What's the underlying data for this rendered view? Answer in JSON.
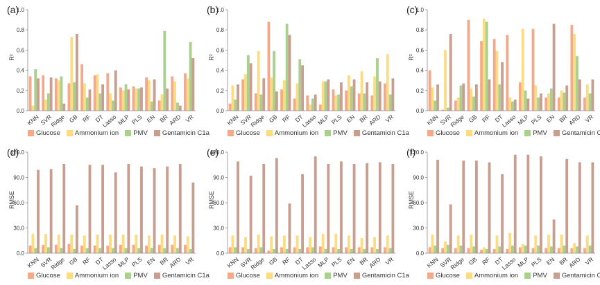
{
  "chart_data": {
    "colors": [
      "#f4a98b",
      "#fbdc82",
      "#a9d08e",
      "#c79e8f"
    ],
    "categories": [
      "KNN",
      "SVR",
      "Ridge",
      "GB",
      "RF",
      "DT",
      "Lasso",
      "MLP",
      "PLS",
      "EN",
      "BR",
      "ARD",
      "VR"
    ],
    "legend": [
      "Glucose",
      "Ammonium ion",
      "PMV",
      "Gentamicin C1a"
    ],
    "panels": [
      {
        "label": "(a)",
        "ylabel": "R²",
        "ylim": [
          0,
          1.0
        ],
        "ticks": [
          "0.0",
          "0.2",
          "0.4",
          "0.6",
          "0.8",
          "1.0"
        ],
        "type": "bar",
        "series": [
          {
            "name": "Glucose",
            "values": [
              0.34,
              0.35,
              0.32,
              0.27,
              0.46,
              0.35,
              0.37,
              0.23,
              0.24,
              0.33,
              0.1,
              0.34,
              0.37
            ]
          },
          {
            "name": "Ammonium ion",
            "values": [
              0.05,
              0.11,
              0.3,
              0.73,
              0.27,
              0.36,
              0.17,
              0.2,
              0.22,
              0.3,
              0.16,
              0.29,
              0.32
            ]
          },
          {
            "name": "PMV",
            "values": [
              0.41,
              0.17,
              0.34,
              0.28,
              0.13,
              0.17,
              0.1,
              0.26,
              0.22,
              0.09,
              0.79,
              0.08,
              0.68
            ]
          },
          {
            "name": "Gentamicin C1a",
            "values": [
              0.32,
              0.33,
              0.07,
              0.76,
              0.21,
              0.26,
              0.4,
              0.21,
              0.23,
              0.31,
              0.22,
              0.05,
              0.52
            ]
          }
        ]
      },
      {
        "label": "(b)",
        "ylabel": "R²",
        "ylim": [
          0,
          1.0
        ],
        "ticks": [
          "0.0",
          "0.2",
          "0.4",
          "0.6",
          "0.8",
          "1.0"
        ],
        "type": "bar",
        "series": [
          {
            "name": "Glucose",
            "values": [
              0.07,
              0.31,
              0.17,
              0.88,
              0.21,
              0.12,
              0.15,
              0.06,
              0.21,
              0.2,
              0.17,
              0.15,
              0.27
            ]
          },
          {
            "name": "Ammonium ion",
            "values": [
              0.25,
              0.36,
              0.59,
              0.33,
              0.3,
              0.27,
              0.06,
              0.29,
              0.15,
              0.35,
              0.39,
              0.34,
              0.56
            ]
          },
          {
            "name": "PMV",
            "values": [
              0.11,
              0.55,
              0.16,
              0.59,
              0.86,
              0.51,
              0.12,
              0.29,
              0.16,
              0.24,
              0.17,
              0.52,
              0.16
            ]
          },
          {
            "name": "Gentamicin C1a",
            "values": [
              0.26,
              0.47,
              0.32,
              0.19,
              0.75,
              0.45,
              0.16,
              0.31,
              0.28,
              0.31,
              0.28,
              0.29,
              0.32
            ]
          }
        ]
      },
      {
        "label": "(c)",
        "ylabel": "R²",
        "ylim": [
          0,
          1.0
        ],
        "ticks": [
          "0.0",
          "0.2",
          "0.4",
          "0.6",
          "0.8",
          "1.0"
        ],
        "type": "bar",
        "series": [
          {
            "name": "Glucose",
            "values": [
              0.4,
              0.01,
              0.1,
              0.9,
              0.69,
              0.71,
              0.75,
              0.28,
              0.81,
              0.13,
              0.13,
              0.85,
              0.13
            ]
          },
          {
            "name": "Ammonium ion",
            "values": [
              0.23,
              0.6,
              0.13,
              0.22,
              0.91,
              0.59,
              0.13,
              0.81,
              0.25,
              0.17,
              0.2,
              0.76,
              0.26
            ]
          },
          {
            "name": "PMV",
            "values": [
              0.1,
              0.03,
              0.25,
              0.14,
              0.88,
              0.26,
              0.09,
              0.2,
              0.13,
              0.22,
              0.18,
              0.54,
              0.17
            ]
          },
          {
            "name": "Gentamicin C1a",
            "values": [
              0.26,
              0.76,
              0.27,
              0.26,
              0.31,
              0.48,
              0.11,
              0.12,
              0.17,
              0.86,
              0.25,
              0.31,
              0.31
            ]
          }
        ]
      },
      {
        "label": "(d)",
        "ylabel": "RMSE",
        "ylim": [
          0,
          120
        ],
        "ticks": [
          "0.0",
          "30.0",
          "60.0",
          "90.0",
          "120.0"
        ],
        "type": "bar",
        "series": [
          {
            "name": "Glucose",
            "values": [
              9,
              10,
              10,
              11,
              9,
              9,
              9,
              10,
              10,
              9,
              10,
              10,
              10
            ]
          },
          {
            "name": "Ammonium ion",
            "values": [
              23,
              23,
              22,
              22,
              21,
              22,
              22,
              22,
              22,
              21,
              22,
              21,
              20
            ]
          },
          {
            "name": "PMV",
            "values": [
              6,
              7,
              6,
              5,
              6,
              6,
              6,
              6,
              6,
              6,
              6,
              6,
              5
            ]
          },
          {
            "name": "Gentamicin C1a",
            "values": [
              99,
              100,
              106,
              57,
              105,
              105,
              96,
              106,
              103,
              101,
              103,
              106,
              84
            ]
          }
        ]
      },
      {
        "label": "(e)",
        "ylabel": "RMSE",
        "ylim": [
          0,
          120
        ],
        "ticks": [
          "0.0",
          "30.0",
          "60.0",
          "90.0",
          "120.0"
        ],
        "type": "bar",
        "series": [
          {
            "name": "Glucose",
            "values": [
              7,
              7,
              6,
              3,
              7,
              7,
              7,
              8,
              7,
              7,
              7,
              7,
              7
            ]
          },
          {
            "name": "Ammonium ion",
            "values": [
              21,
              19,
              22,
              20,
              21,
              21,
              19,
              23,
              23,
              21,
              18,
              19,
              21
            ]
          },
          {
            "name": "PMV",
            "values": [
              7,
              5,
              7,
              5,
              5,
              5,
              7,
              5,
              5,
              5,
              5,
              5,
              6
            ]
          },
          {
            "name": "Gentamicin C1a",
            "values": [
              109,
              92,
              106,
              113,
              59,
              94,
              115,
              106,
              109,
              106,
              107,
              108,
              106
            ]
          }
        ]
      },
      {
        "label": "(f)",
        "ylabel": "RMSE",
        "ylim": [
          0,
          120
        ],
        "ticks": [
          "0.0",
          "30.0",
          "60.0",
          "90.0",
          "120.0"
        ],
        "type": "bar",
        "series": [
          {
            "name": "Glucose",
            "values": [
              7,
              6,
              6,
              6,
              4,
              5,
              5,
              7,
              6,
              6,
              6,
              6,
              6
            ]
          },
          {
            "name": "Ammonium ion",
            "values": [
              22,
              14,
              21,
              22,
              7,
              21,
              24,
              11,
              21,
              22,
              22,
              12,
              21
            ]
          },
          {
            "name": "PMV",
            "values": [
              9,
              10,
              9,
              8,
              5,
              8,
              9,
              9,
              9,
              8,
              9,
              8,
              9
            ]
          },
          {
            "name": "Gentamicin C1a",
            "values": [
              111,
              58,
              110,
              110,
              108,
              94,
              117,
              117,
              115,
              40,
              112,
              108,
              108
            ]
          }
        ]
      }
    ]
  }
}
